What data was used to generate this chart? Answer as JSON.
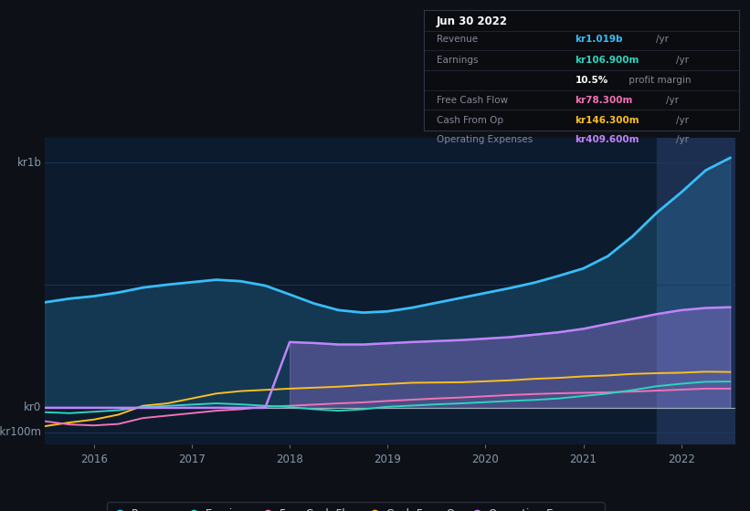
{
  "background_color": "#0d1117",
  "chart_bg_color": "#0d1b2e",
  "highlight_bg_color": "#1c2f50",
  "grid_color": "#1e3050",
  "title_date": "Jun 30 2022",
  "tooltip_revenue_val": "kr1.019b",
  "tooltip_revenue_color": "#38bdf8",
  "tooltip_earnings_val": "kr106.900m",
  "tooltip_earnings_color": "#2dd4bf",
  "tooltip_margin": "10.5%",
  "tooltip_fcf_val": "kr78.300m",
  "tooltip_fcf_color": "#f472b6",
  "tooltip_cop_val": "kr146.300m",
  "tooltip_cop_color": "#fbbf24",
  "tooltip_opex_val": "kr409.600m",
  "tooltip_opex_color": "#c084fc",
  "ylabel_top": "kr1b",
  "ylabel_mid": "kr0",
  "ylabel_bot": "-kr100m",
  "years": [
    2015.5,
    2015.75,
    2016.0,
    2016.25,
    2016.5,
    2016.75,
    2017.0,
    2017.25,
    2017.5,
    2017.75,
    2018.0,
    2018.25,
    2018.5,
    2018.75,
    2019.0,
    2019.25,
    2019.5,
    2019.75,
    2020.0,
    2020.25,
    2020.5,
    2020.75,
    2021.0,
    2021.25,
    2021.5,
    2021.75,
    2022.0,
    2022.25,
    2022.5
  ],
  "revenue": [
    430,
    445,
    455,
    470,
    490,
    502,
    512,
    522,
    516,
    498,
    462,
    425,
    398,
    388,
    393,
    408,
    428,
    448,
    468,
    488,
    510,
    538,
    568,
    618,
    698,
    795,
    878,
    968,
    1019
  ],
  "earnings": [
    -18,
    -22,
    -16,
    -10,
    3,
    8,
    13,
    18,
    14,
    8,
    3,
    -6,
    -12,
    -6,
    4,
    9,
    14,
    18,
    23,
    28,
    32,
    38,
    48,
    58,
    72,
    88,
    98,
    106,
    107
  ],
  "free_cash_flow": [
    -55,
    -68,
    -72,
    -66,
    -42,
    -32,
    -22,
    -12,
    -6,
    4,
    8,
    13,
    18,
    22,
    28,
    33,
    38,
    42,
    47,
    52,
    56,
    59,
    61,
    63,
    66,
    70,
    74,
    78,
    78
  ],
  "cash_from_op": [
    -75,
    -60,
    -48,
    -28,
    8,
    18,
    38,
    58,
    68,
    73,
    78,
    82,
    86,
    92,
    97,
    102,
    103,
    104,
    108,
    112,
    118,
    122,
    128,
    132,
    138,
    141,
    143,
    147,
    146
  ],
  "operating_expenses": [
    0,
    0,
    0,
    0,
    0,
    0,
    0,
    0,
    0,
    0,
    268,
    264,
    258,
    258,
    263,
    268,
    272,
    276,
    282,
    288,
    298,
    308,
    322,
    342,
    362,
    382,
    398,
    407,
    410
  ],
  "revenue_color": "#38bdf8",
  "earnings_color": "#2dd4bf",
  "fcf_color": "#f472b6",
  "cop_color": "#fbbf24",
  "opex_color": "#c084fc",
  "highlight_start": 2021.75,
  "highlight_end": 2022.6,
  "ylim_min": -150,
  "ylim_max": 1100,
  "x_min": 2015.5,
  "x_max": 2022.55,
  "x_ticks": [
    2016,
    2017,
    2018,
    2019,
    2020,
    2021,
    2022
  ],
  "legend_items": [
    "Revenue",
    "Earnings",
    "Free Cash Flow",
    "Cash From Op",
    "Operating Expenses"
  ],
  "legend_colors": [
    "#38bdf8",
    "#2dd4bf",
    "#f472b6",
    "#fbbf24",
    "#c084fc"
  ]
}
